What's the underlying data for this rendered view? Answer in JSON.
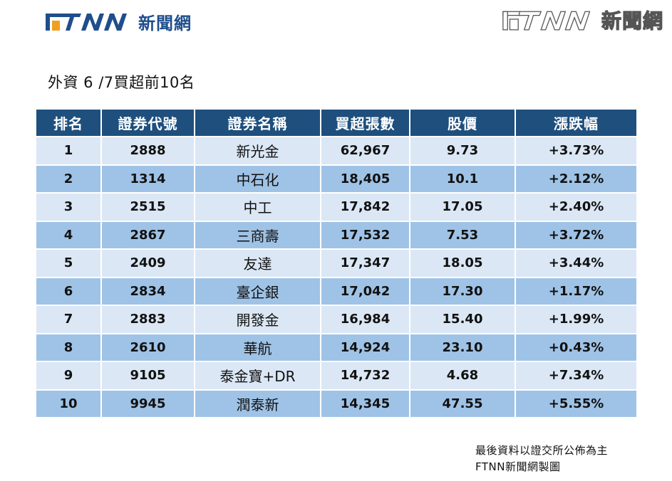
{
  "brand": {
    "logo_latin": "FTNN",
    "logo_cjk": "新聞網",
    "watermark_latin": "FTNN",
    "watermark_cjk": "新聞網",
    "primary_color": "#1f4e8c",
    "accent_color": "#f0a020"
  },
  "title": "外資 6 /7買超前10名",
  "table": {
    "headers": [
      "排名",
      "證券代號",
      "證券名稱",
      "買超張數",
      "股價",
      "漲跌幅"
    ],
    "rows": [
      {
        "rank": "1",
        "code": "2888",
        "name": "新光金",
        "volume": "62,967",
        "price": "9.73",
        "change": "+3.73%"
      },
      {
        "rank": "2",
        "code": "1314",
        "name": "中石化",
        "volume": "18,405",
        "price": "10.1",
        "change": "+2.12%"
      },
      {
        "rank": "3",
        "code": "2515",
        "name": "中工",
        "volume": "17,842",
        "price": "17.05",
        "change": "+2.40%"
      },
      {
        "rank": "4",
        "code": "2867",
        "name": "三商壽",
        "volume": "17,532",
        "price": "7.53",
        "change": "+3.72%"
      },
      {
        "rank": "5",
        "code": "2409",
        "name": "友達",
        "volume": "17,347",
        "price": "18.05",
        "change": "+3.44%"
      },
      {
        "rank": "6",
        "code": "2834",
        "name": "臺企銀",
        "volume": "17,042",
        "price": "17.30",
        "change": "+1.17%"
      },
      {
        "rank": "7",
        "code": "2883",
        "name": "開發金",
        "volume": "16,984",
        "price": "15.40",
        "change": "+1.99%"
      },
      {
        "rank": "8",
        "code": "2610",
        "name": "華航",
        "volume": "14,924",
        "price": "23.10",
        "change": "+0.43%"
      },
      {
        "rank": "9",
        "code": "9105",
        "name": "泰金寶+DR",
        "volume": "14,732",
        "price": "4.68",
        "change": "+7.34%"
      },
      {
        "rank": "10",
        "code": "9945",
        "name": "潤泰新",
        "volume": "14,345",
        "price": "47.55",
        "change": "+5.55%"
      }
    ]
  },
  "footnote": {
    "line1": "最後資料以證交所公佈為主",
    "line2": "FTNN新聞網製圖"
  }
}
